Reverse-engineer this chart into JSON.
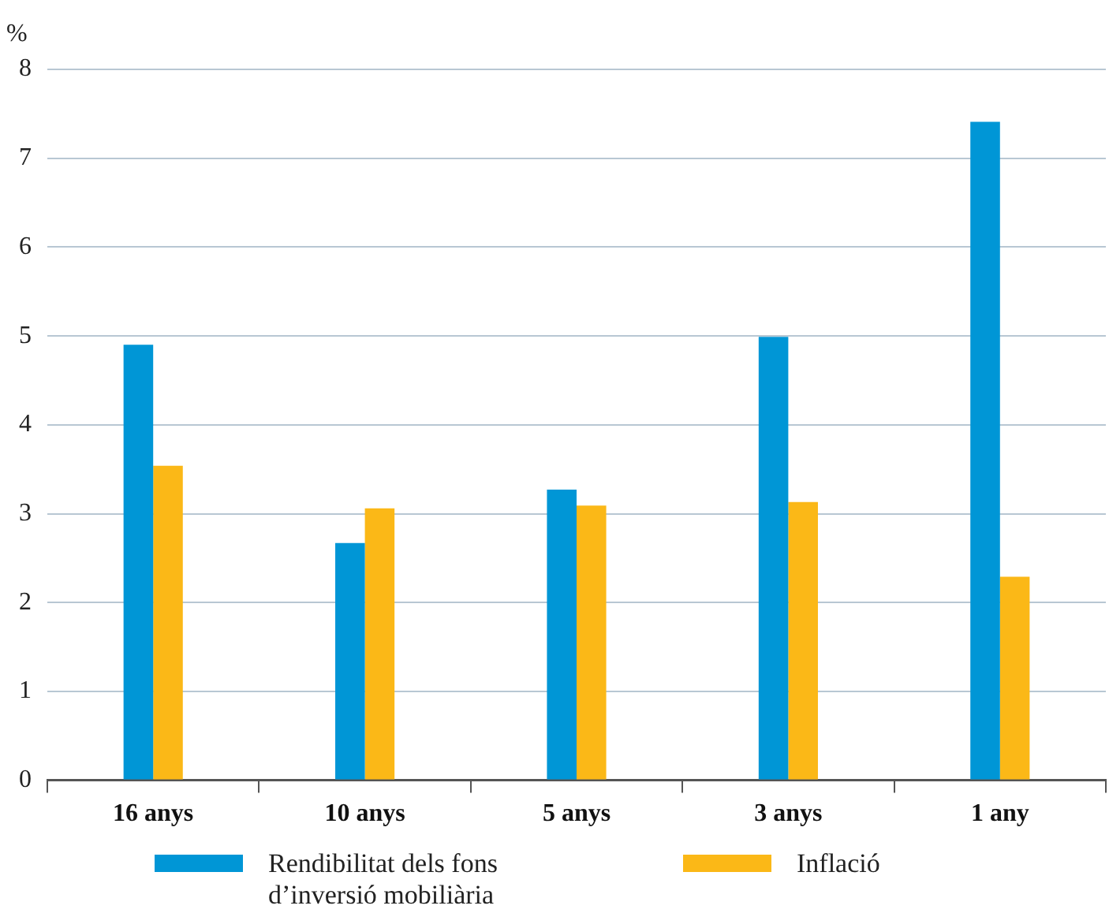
{
  "chart_data": {
    "type": "bar",
    "ylabel": "%",
    "categories": [
      "16 anys",
      "10 anys",
      "5 anys",
      "3 anys",
      "1 any"
    ],
    "series": [
      {
        "name": "Rendibilitat dels fons d’inversió mobiliària",
        "color": "#0096d6",
        "values": [
          4.9,
          2.67,
          3.27,
          4.99,
          7.41
        ]
      },
      {
        "name": "Inflació",
        "color": "#fbb817",
        "values": [
          3.54,
          3.06,
          3.09,
          3.13,
          2.29
        ]
      }
    ],
    "ylim": [
      0,
      8
    ],
    "yticks": [
      0,
      1,
      2,
      3,
      4,
      5,
      6,
      7,
      8
    ],
    "grid": "y",
    "legend": "bottom"
  }
}
